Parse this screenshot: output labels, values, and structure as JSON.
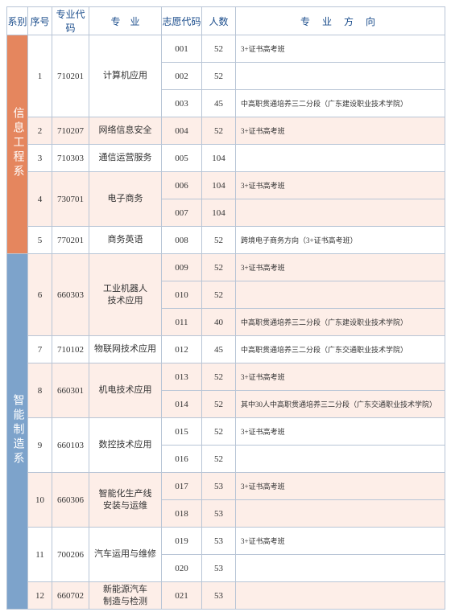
{
  "headers": {
    "dept": "系别",
    "seq": "序号",
    "major_code": "专业代码",
    "major": "专　业",
    "vote_code": "志愿代码",
    "count": "人数",
    "direction": "专 业 方 向"
  },
  "depts": [
    {
      "name": "信息工程系",
      "css": "dept1"
    },
    {
      "name": "智能制造系",
      "css": "dept2"
    }
  ],
  "rows": [
    {
      "dept": 0,
      "seq": "1",
      "major_code": "710201",
      "major": "计算机应用",
      "major_rowspan": 3,
      "vote": "001",
      "count": "52",
      "dir": "3+证书高考班",
      "alt": false
    },
    {
      "dept": 0,
      "vote": "002",
      "count": "52",
      "dir": "",
      "alt": false
    },
    {
      "dept": 0,
      "vote": "003",
      "count": "45",
      "dir": "中高职贯通培养三二分段（广东建设职业技术学院）",
      "alt": false
    },
    {
      "dept": 0,
      "seq": "2",
      "major_code": "710207",
      "major": "网络信息安全",
      "major_rowspan": 1,
      "vote": "004",
      "count": "52",
      "dir": "3+证书高考班",
      "alt": true
    },
    {
      "dept": 0,
      "seq": "3",
      "major_code": "710303",
      "major": "通信运营服务",
      "major_rowspan": 1,
      "vote": "005",
      "count": "104",
      "dir": "",
      "alt": false
    },
    {
      "dept": 0,
      "seq": "4",
      "major_code": "730701",
      "major": "电子商务",
      "major_rowspan": 2,
      "vote": "006",
      "count": "104",
      "dir": "3+证书高考班",
      "alt": true
    },
    {
      "dept": 0,
      "vote": "007",
      "count": "104",
      "dir": "",
      "alt": true
    },
    {
      "dept": 0,
      "seq": "5",
      "major_code": "770201",
      "major": "商务英语",
      "major_rowspan": 1,
      "vote": "008",
      "count": "52",
      "dir": "跨境电子商务方向（3+证书高考班）",
      "alt": false
    },
    {
      "dept": 1,
      "seq": "6",
      "major_code": "660303",
      "major": "工业机器人\n技术应用",
      "major_rowspan": 3,
      "vote": "009",
      "count": "52",
      "dir": "3+证书高考班",
      "alt": true
    },
    {
      "dept": 1,
      "vote": "010",
      "count": "52",
      "dir": "",
      "alt": true
    },
    {
      "dept": 1,
      "vote": "011",
      "count": "40",
      "dir": "中高职贯通培养三二分段（广东建设职业技术学院）",
      "alt": true
    },
    {
      "dept": 1,
      "seq": "7",
      "major_code": "710102",
      "major": "物联网技术应用",
      "major_rowspan": 1,
      "vote": "012",
      "count": "45",
      "dir": "中高职贯通培养三二分段（广东交通职业技术学院）",
      "alt": false
    },
    {
      "dept": 1,
      "seq": "8",
      "major_code": "660301",
      "major": "机电技术应用",
      "major_rowspan": 2,
      "vote": "013",
      "count": "52",
      "dir": "3+证书高考班",
      "alt": true
    },
    {
      "dept": 1,
      "vote": "014",
      "count": "52",
      "dir": "其中30人中高职贯通培养三二分段（广东交通职业技术学院）",
      "alt": true
    },
    {
      "dept": 1,
      "seq": "9",
      "major_code": "660103",
      "major": "数控技术应用",
      "major_rowspan": 2,
      "vote": "015",
      "count": "52",
      "dir": "3+证书高考班",
      "alt": false
    },
    {
      "dept": 1,
      "vote": "016",
      "count": "52",
      "dir": "",
      "alt": false
    },
    {
      "dept": 1,
      "seq": "10",
      "major_code": "660306",
      "major": "智能化生产线\n安装与运维",
      "major_rowspan": 2,
      "vote": "017",
      "count": "53",
      "dir": "3+证书高考班",
      "alt": true
    },
    {
      "dept": 1,
      "vote": "018",
      "count": "53",
      "dir": "",
      "alt": true
    },
    {
      "dept": 1,
      "seq": "11",
      "major_code": "700206",
      "major": "汽车运用与维修",
      "major_rowspan": 2,
      "vote": "019",
      "count": "53",
      "dir": "3+证书高考班",
      "alt": false
    },
    {
      "dept": 1,
      "vote": "020",
      "count": "53",
      "dir": "",
      "alt": false
    },
    {
      "dept": 1,
      "seq": "12",
      "major_code": "660702",
      "major": "新能源汽车\n制造与检测",
      "major_rowspan": 1,
      "vote": "021",
      "count": "53",
      "dir": "",
      "alt": true
    }
  ]
}
